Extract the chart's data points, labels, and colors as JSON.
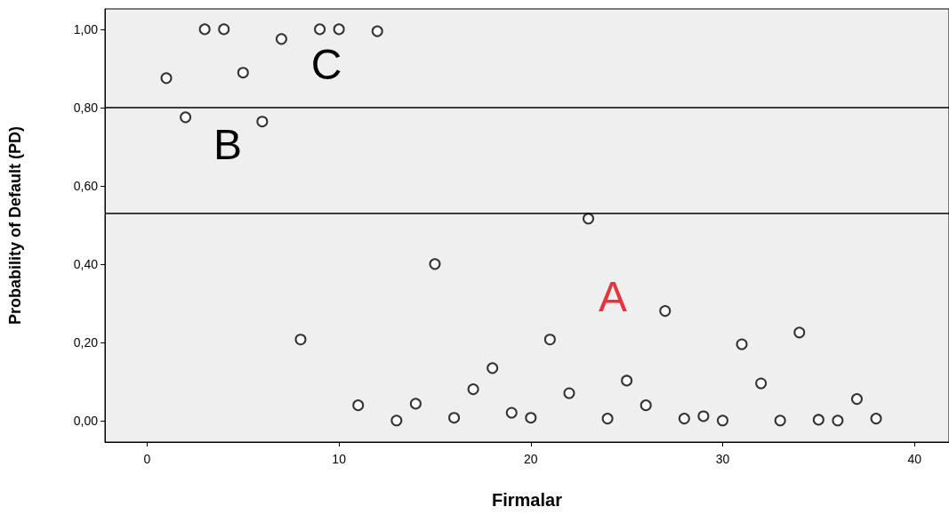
{
  "chart_data": {
    "type": "scatter",
    "xlabel": "Firmalar",
    "ylabel": "Probability of Default (PD)",
    "x": [
      1,
      2,
      3,
      4,
      5,
      6,
      7,
      8,
      9,
      10,
      11,
      12,
      13,
      14,
      15,
      16,
      17,
      18,
      19,
      20,
      21,
      22,
      23,
      24,
      25,
      26,
      27,
      28,
      29,
      30,
      31,
      32,
      33,
      34,
      35,
      36,
      37,
      38
    ],
    "values": [
      0.875,
      0.775,
      1.0,
      1.0,
      0.889,
      0.764,
      0.975,
      0.207,
      1.0,
      1.0,
      0.039,
      0.995,
      0.0,
      0.043,
      0.4,
      0.007,
      0.08,
      0.134,
      0.02,
      0.007,
      0.207,
      0.07,
      0.516,
      0.005,
      0.102,
      0.039,
      0.28,
      0.005,
      0.011,
      0.0,
      0.195,
      0.095,
      0.0,
      0.225,
      0.002,
      0.0,
      0.055,
      0.005
    ],
    "color": "#000000",
    "marker": "circle",
    "grid": false,
    "xlim": [
      -2.2,
      41.8
    ],
    "xticks": [
      0,
      10,
      20,
      30,
      40
    ],
    "ylim": [
      -0.055,
      1.052
    ],
    "yticks": [
      {
        "value": 0,
        "label": "0,00"
      },
      {
        "value": 0.2,
        "label": "0,20"
      },
      {
        "value": 0.4,
        "label": "0,40"
      },
      {
        "value": 0.6,
        "label": "0,60"
      },
      {
        "value": 0.8,
        "label": "0,80"
      },
      {
        "value": 1,
        "label": "1,00"
      }
    ],
    "ref_lines": [
      {
        "axis": "y",
        "value": 0.798,
        "color": "#000000"
      },
      {
        "axis": "y",
        "value": 0.532,
        "color": "#000000"
      }
    ],
    "annotations": [
      "C",
      "B",
      "A"
    ]
  }
}
